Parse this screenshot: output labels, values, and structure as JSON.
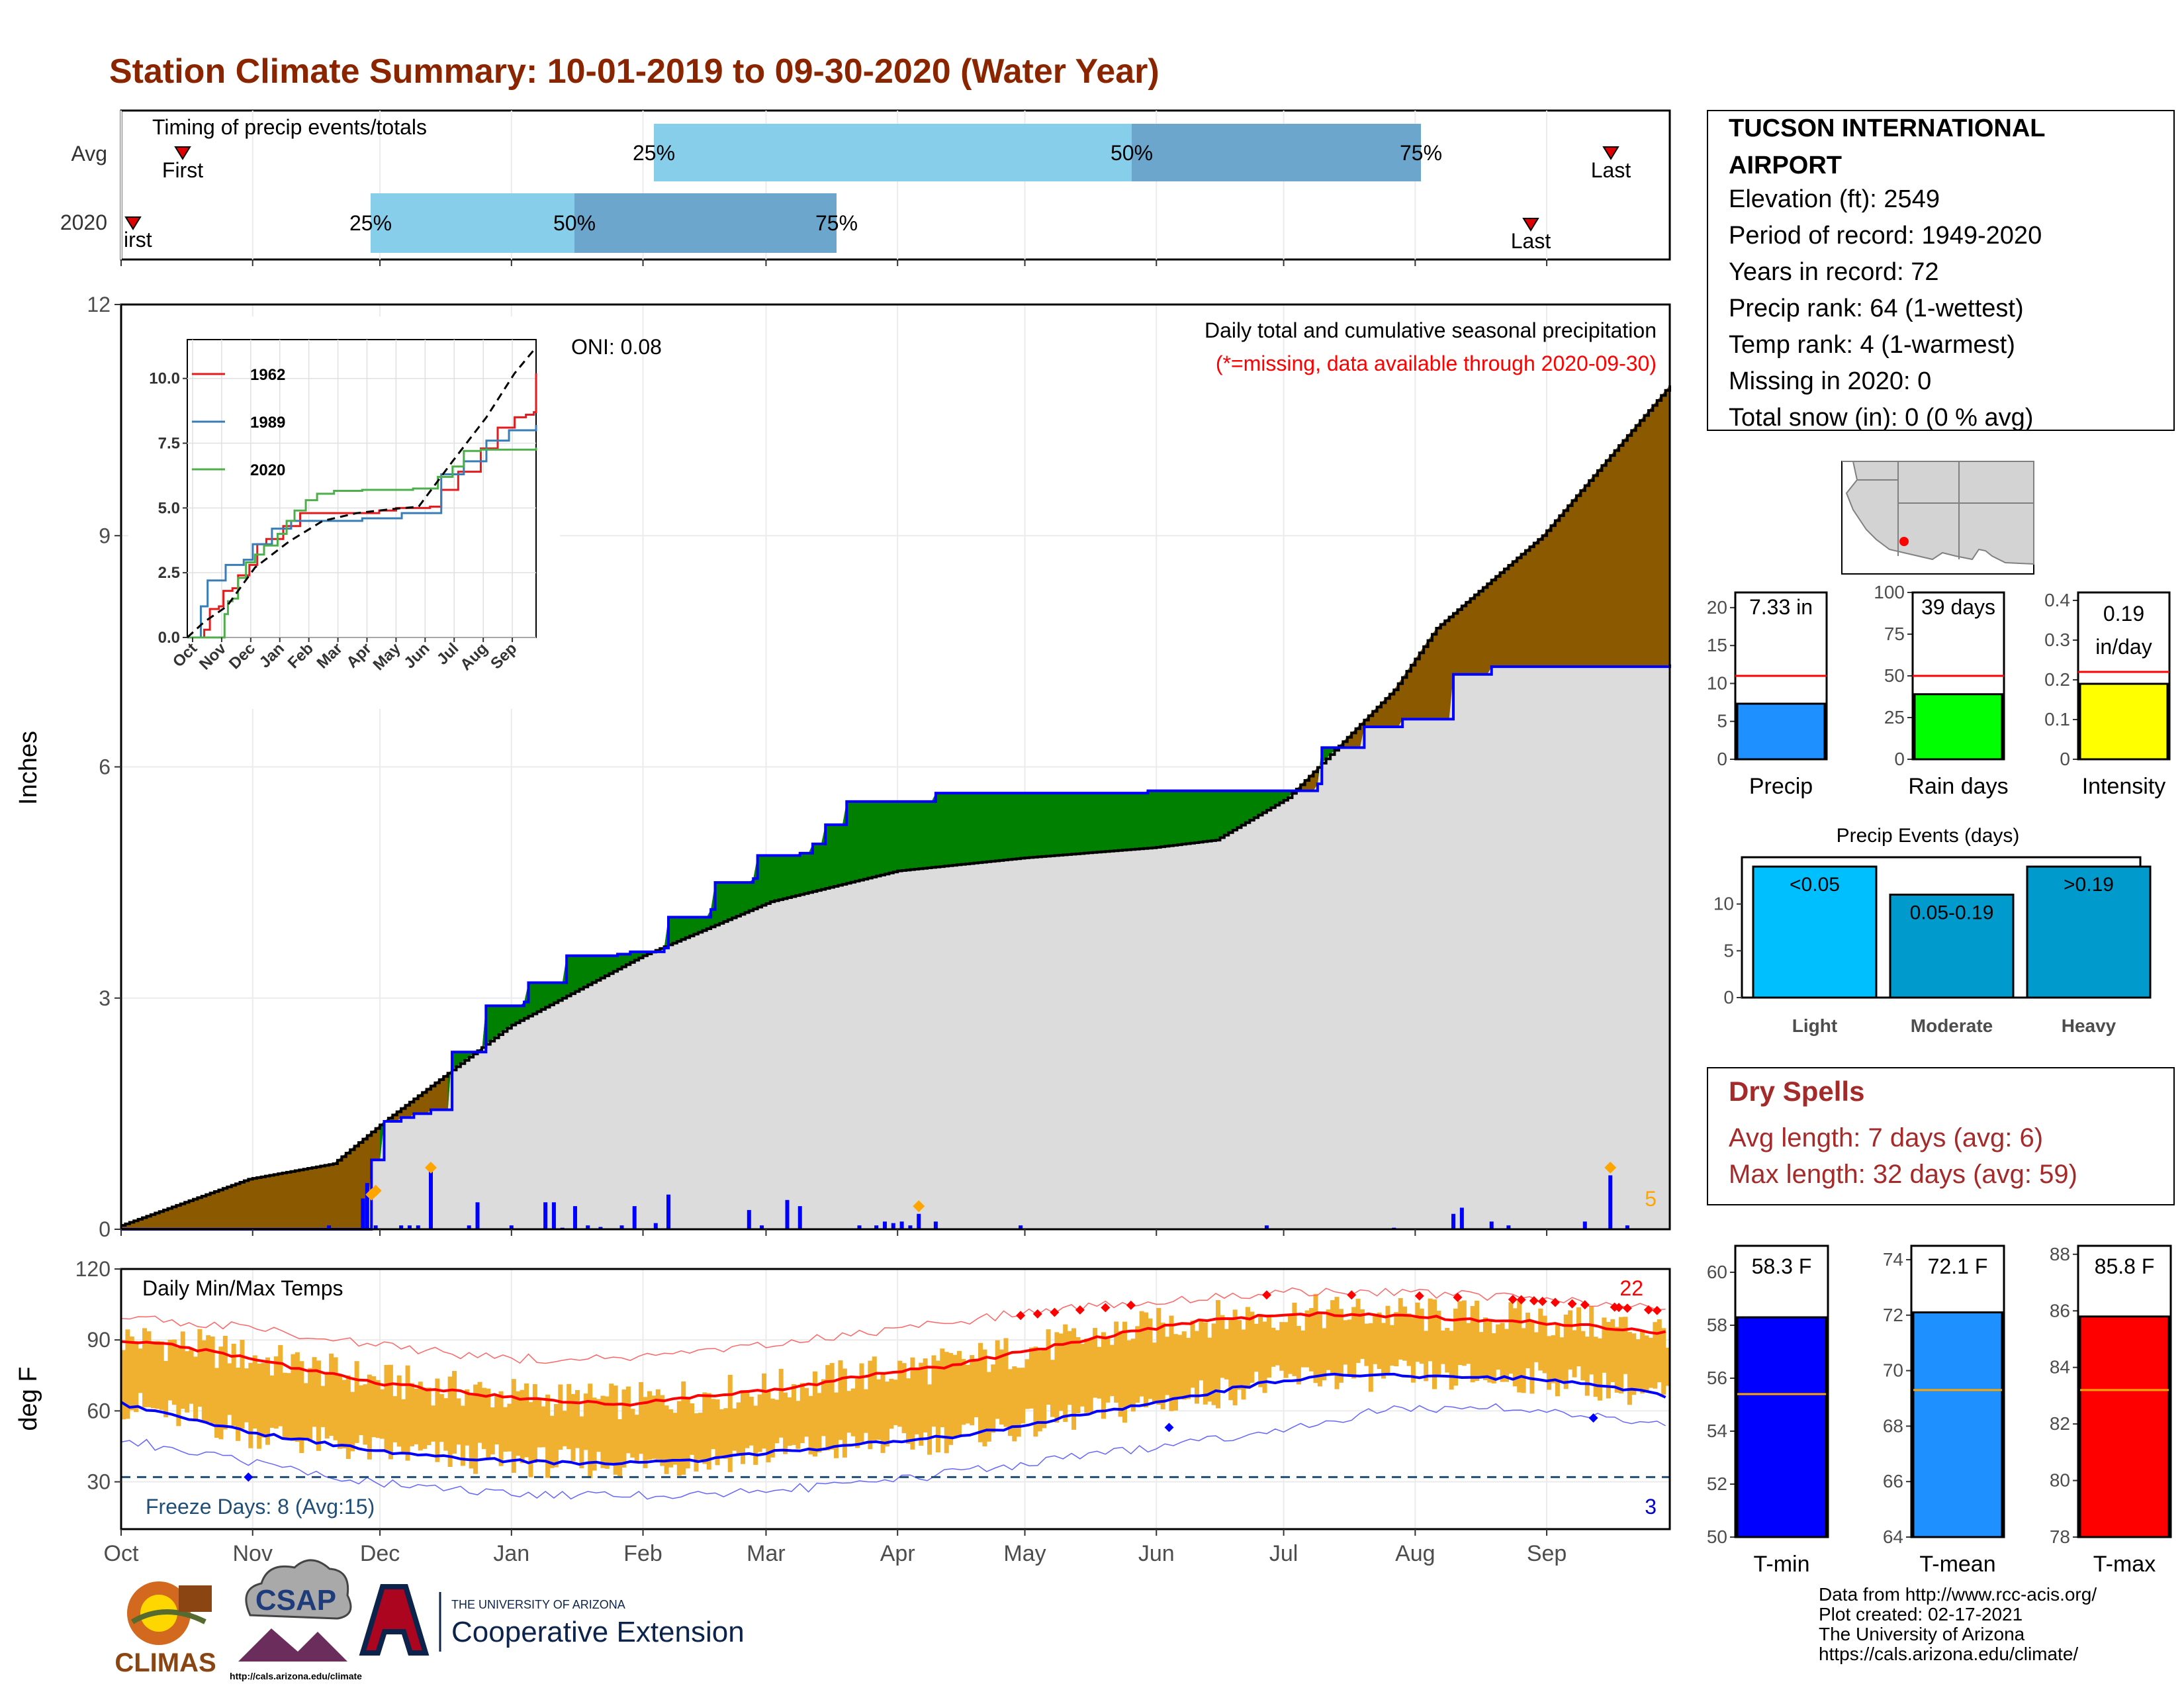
{
  "title": "Station Climate Summary: 10-01-2019 to 09-30-2020 (Water Year)",
  "months": [
    "Oct",
    "Nov",
    "Dec",
    "Jan",
    "Feb",
    "Mar",
    "Apr",
    "May",
    "Jun",
    "Jul",
    "Aug",
    "Sep"
  ],
  "colors": {
    "title": "#8B2500",
    "avg_precip_fill": "#DCDCDC",
    "surplus": "#008000",
    "deficit": "#8B5A00",
    "daily_bar": "#0000FF",
    "temp_bar": "#F0B030",
    "mean_max": "#FF0000",
    "mean_min": "#0000FF",
    "quartile_light": "#87CEEB",
    "quartile_dark": "#6CA6CD",
    "dry_spell_text": "#A52A2A"
  },
  "timing": {
    "title": "Timing of precip events/totals",
    "row_labels": [
      "Avg",
      "2020"
    ],
    "pct_labels": [
      "25%",
      "50%",
      "75%"
    ],
    "first_label": "First",
    "first_label_2020": "irst",
    "last_label": "Last"
  },
  "chart_data": [
    {
      "type": "area",
      "name": "precipitation",
      "title": "Daily total and cumulative seasonal precipitation",
      "subtitle": "(*=missing, data available through 2020-09-30)",
      "ylabel": "Inches",
      "ylim": [
        0,
        12
      ],
      "yticks": [
        0,
        3,
        6,
        9,
        12
      ],
      "x_categories": [
        "Oct",
        "Nov",
        "Dec",
        "Jan",
        "Feb",
        "Mar",
        "Apr",
        "May",
        "Jun",
        "Jul",
        "Aug",
        "Sep"
      ],
      "oni_label": "ONI: 0.08",
      "daily_max_marker": "5",
      "avg_cumulative": [
        [
          0,
          0.05
        ],
        [
          30,
          0.65
        ],
        [
          50,
          0.85
        ],
        [
          62,
          1.4
        ],
        [
          92,
          2.65
        ],
        [
          123,
          3.55
        ],
        [
          153,
          4.25
        ],
        [
          183,
          4.65
        ],
        [
          213,
          4.82
        ],
        [
          243,
          4.95
        ],
        [
          258,
          5.05
        ],
        [
          275,
          5.6
        ],
        [
          300,
          7.0
        ],
        [
          310,
          7.8
        ],
        [
          335,
          9.0
        ],
        [
          365,
          10.95
        ]
      ],
      "cumulative_2020": [
        [
          0,
          0
        ],
        [
          58,
          0
        ],
        [
          59,
          0.9
        ],
        [
          62,
          1.4
        ],
        [
          66,
          1.45
        ],
        [
          69,
          1.5
        ],
        [
          73,
          1.55
        ],
        [
          78,
          2.3
        ],
        [
          85,
          2.3
        ],
        [
          86,
          2.9
        ],
        [
          95,
          2.95
        ],
        [
          96,
          3.2
        ],
        [
          104,
          3.2
        ],
        [
          105,
          3.55
        ],
        [
          117,
          3.57
        ],
        [
          120,
          3.6
        ],
        [
          128,
          3.65
        ],
        [
          129,
          4.05
        ],
        [
          139,
          4.15
        ],
        [
          140,
          4.5
        ],
        [
          149,
          4.55
        ],
        [
          150,
          4.85
        ],
        [
          160,
          4.88
        ],
        [
          163,
          5.0
        ],
        [
          166,
          5.25
        ],
        [
          171,
          5.55
        ],
        [
          192,
          5.66
        ],
        [
          242,
          5.69
        ],
        [
          282,
          5.78
        ],
        [
          283,
          6.25
        ],
        [
          293,
          6.52
        ],
        [
          302,
          6.62
        ],
        [
          314,
          7.2
        ],
        [
          323,
          7.3
        ],
        [
          365,
          7.33
        ]
      ],
      "daily_2020": [
        [
          49,
          0.05
        ],
        [
          57,
          0.4
        ],
        [
          58,
          0.6
        ],
        [
          60,
          0.05
        ],
        [
          66,
          0.05
        ],
        [
          68,
          0.05
        ],
        [
          70,
          0.05
        ],
        [
          73,
          0.75
        ],
        [
          82,
          0.05
        ],
        [
          84,
          0.35
        ],
        [
          92,
          0.05
        ],
        [
          100,
          0.35
        ],
        [
          102,
          0.35
        ],
        [
          104,
          0.02
        ],
        [
          107,
          0.3
        ],
        [
          110,
          0.05
        ],
        [
          113,
          0.03
        ],
        [
          118,
          0.05
        ],
        [
          121,
          0.3
        ],
        [
          126,
          0.08
        ],
        [
          129,
          0.45
        ],
        [
          148,
          0.25
        ],
        [
          151,
          0.05
        ],
        [
          157,
          0.38
        ],
        [
          160,
          0.3
        ],
        [
          174,
          0.05
        ],
        [
          178,
          0.05
        ],
        [
          180,
          0.1
        ],
        [
          182,
          0.08
        ],
        [
          184,
          0.1
        ],
        [
          186,
          0.05
        ],
        [
          188,
          0.2
        ],
        [
          192,
          0.1
        ],
        [
          212,
          0.05
        ],
        [
          270,
          0.05
        ],
        [
          300,
          0.02
        ],
        [
          314,
          0.2
        ],
        [
          316,
          0.28
        ],
        [
          323,
          0.1
        ],
        [
          327,
          0.05
        ],
        [
          345,
          0.1
        ],
        [
          351,
          0.7
        ],
        [
          355,
          0.05
        ]
      ],
      "record_markers": [
        [
          59,
          0.45
        ],
        [
          60,
          0.5
        ],
        [
          73,
          0.8
        ],
        [
          188,
          0.3
        ],
        [
          351,
          0.8
        ]
      ]
    },
    {
      "type": "line",
      "name": "inset_cumulative",
      "yticks": [
        0.0,
        2.5,
        5.0,
        7.5,
        10.0
      ],
      "ylim": [
        0,
        11.5
      ],
      "series": [
        {
          "name": "1962",
          "color": "#E41A1C",
          "points": [
            [
              0,
              0
            ],
            [
              15,
              0.3
            ],
            [
              20,
              1.1
            ],
            [
              28,
              1.2
            ],
            [
              32,
              1.8
            ],
            [
              40,
              1.9
            ],
            [
              45,
              2.4
            ],
            [
              55,
              2.8
            ],
            [
              62,
              3.6
            ],
            [
              70,
              3.8
            ],
            [
              85,
              4.3
            ],
            [
              100,
              4.8
            ],
            [
              110,
              4.8
            ],
            [
              130,
              4.8
            ],
            [
              150,
              4.8
            ],
            [
              170,
              4.9
            ],
            [
              185,
              5.0
            ],
            [
              200,
              5.0
            ],
            [
              215,
              5.05
            ],
            [
              225,
              5.7
            ],
            [
              240,
              6.4
            ],
            [
              260,
              7.3
            ],
            [
              275,
              8.1
            ],
            [
              290,
              8.5
            ],
            [
              300,
              8.6
            ],
            [
              307,
              8.7
            ],
            [
              309,
              10.2
            ]
          ]
        },
        {
          "name": "1989",
          "color": "#377EB8",
          "points": [
            [
              0,
              0
            ],
            [
              12,
              1.2
            ],
            [
              18,
              2.2
            ],
            [
              30,
              2.2
            ],
            [
              34,
              2.8
            ],
            [
              50,
              3.0
            ],
            [
              58,
              3.6
            ],
            [
              75,
              4.2
            ],
            [
              92,
              4.5
            ],
            [
              110,
              4.5
            ],
            [
              130,
              4.5
            ],
            [
              155,
              4.6
            ],
            [
              190,
              4.8
            ],
            [
              210,
              4.8
            ],
            [
              225,
              6.3
            ],
            [
              245,
              6.8
            ],
            [
              265,
              7.6
            ],
            [
              285,
              8.0
            ],
            [
              309,
              8.2
            ]
          ]
        },
        {
          "name": "2020",
          "color": "#4DAF4A",
          "points": [
            [
              0,
              0
            ],
            [
              30,
              0
            ],
            [
              33,
              0.9
            ],
            [
              36,
              1.4
            ],
            [
              40,
              1.5
            ],
            [
              45,
              2.3
            ],
            [
              52,
              2.9
            ],
            [
              60,
              3.2
            ],
            [
              68,
              3.55
            ],
            [
              80,
              4.0
            ],
            [
              88,
              4.5
            ],
            [
              95,
              4.9
            ],
            [
              105,
              5.3
            ],
            [
              115,
              5.55
            ],
            [
              130,
              5.66
            ],
            [
              155,
              5.7
            ],
            [
              200,
              5.75
            ],
            [
              222,
              6.2
            ],
            [
              235,
              6.6
            ],
            [
              245,
              7.2
            ],
            [
              260,
              7.25
            ],
            [
              309,
              7.33
            ]
          ]
        }
      ],
      "average": [
        [
          0,
          0
        ],
        [
          15,
          0.6
        ],
        [
          35,
          1.2
        ],
        [
          60,
          2.7
        ],
        [
          90,
          3.7
        ],
        [
          120,
          4.5
        ],
        [
          150,
          4.8
        ],
        [
          180,
          4.95
        ],
        [
          205,
          5.05
        ],
        [
          235,
          6.8
        ],
        [
          265,
          8.5
        ],
        [
          290,
          10.2
        ],
        [
          309,
          11.2
        ]
      ],
      "x_labels": [
        "Oct",
        "Nov",
        "Dec",
        "Jan",
        "Feb",
        "Mar",
        "Apr",
        "May",
        "Jun",
        "Jul",
        "Aug",
        "Sep"
      ]
    },
    {
      "type": "bar",
      "name": "daily_temps",
      "title": "Daily Min/Max Temps",
      "ylabel": "deg F",
      "ylim": [
        10,
        120
      ],
      "yticks": [
        30,
        60,
        90,
        120
      ],
      "freeze_label": "Freeze Days: 8 (Avg:15)",
      "freeze_line": 32,
      "record_high_count": "22",
      "record_low_count": "3",
      "mean_max": [
        [
          0,
          90
        ],
        [
          15,
          87
        ],
        [
          30,
          82
        ],
        [
          45,
          77
        ],
        [
          60,
          72
        ],
        [
          75,
          69
        ],
        [
          90,
          66
        ],
        [
          105,
          64
        ],
        [
          120,
          63
        ],
        [
          135,
          66
        ],
        [
          150,
          68
        ],
        [
          165,
          72
        ],
        [
          180,
          76
        ],
        [
          195,
          79
        ],
        [
          210,
          84
        ],
        [
          225,
          89
        ],
        [
          240,
          94
        ],
        [
          255,
          98
        ],
        [
          270,
          100
        ],
        [
          285,
          101
        ],
        [
          300,
          100
        ],
        [
          315,
          99
        ],
        [
          330,
          98
        ],
        [
          345,
          96
        ],
        [
          365,
          93
        ]
      ],
      "mean_min": [
        [
          0,
          63
        ],
        [
          15,
          57
        ],
        [
          30,
          51
        ],
        [
          45,
          47
        ],
        [
          60,
          43
        ],
        [
          75,
          41
        ],
        [
          90,
          39
        ],
        [
          105,
          38
        ],
        [
          120,
          38
        ],
        [
          135,
          39
        ],
        [
          150,
          42
        ],
        [
          165,
          44
        ],
        [
          180,
          47
        ],
        [
          195,
          49
        ],
        [
          210,
          53
        ],
        [
          225,
          58
        ],
        [
          240,
          62
        ],
        [
          255,
          67
        ],
        [
          270,
          72
        ],
        [
          285,
          75
        ],
        [
          300,
          75
        ],
        [
          315,
          74
        ],
        [
          330,
          74
        ],
        [
          345,
          72
        ],
        [
          365,
          66
        ]
      ],
      "rec_max_line": [
        [
          0,
          100
        ],
        [
          30,
          95
        ],
        [
          60,
          88
        ],
        [
          90,
          82
        ],
        [
          120,
          82
        ],
        [
          150,
          87
        ],
        [
          180,
          94
        ],
        [
          210,
          101
        ],
        [
          240,
          106
        ],
        [
          270,
          110
        ],
        [
          300,
          110
        ],
        [
          330,
          108
        ],
        [
          365,
          103
        ]
      ],
      "rec_min_line": [
        [
          0,
          48
        ],
        [
          30,
          38
        ],
        [
          60,
          30
        ],
        [
          90,
          25
        ],
        [
          120,
          24
        ],
        [
          150,
          26
        ],
        [
          180,
          30
        ],
        [
          210,
          37
        ],
        [
          240,
          44
        ],
        [
          270,
          51
        ],
        [
          300,
          61
        ],
        [
          330,
          61
        ],
        [
          365,
          55
        ]
      ]
    },
    {
      "type": "bar",
      "name": "precip_totals",
      "categories": [
        "Precip",
        "Rain days",
        "Intensity"
      ],
      "values": [
        7.33,
        39,
        0.19
      ],
      "labels": [
        "7.33 in",
        "39 days",
        "0.19 in/day"
      ],
      "averages": [
        11.0,
        50,
        0.22
      ],
      "ylims": [
        [
          0,
          22
        ],
        [
          0,
          100
        ],
        [
          0,
          0.42
        ]
      ],
      "yticks": [
        [
          0,
          5,
          10,
          15,
          20
        ],
        [
          0,
          25,
          50,
          75,
          100
        ],
        [
          0.0,
          0.1,
          0.2,
          0.3,
          0.4
        ]
      ],
      "colors": [
        "#1E90FF",
        "#00FF00",
        "#FFFF00"
      ]
    },
    {
      "type": "bar",
      "name": "precip_events",
      "title": "Precip Events (days)",
      "categories": [
        "Light",
        "Moderate",
        "Heavy"
      ],
      "values": [
        14,
        11,
        14
      ],
      "labels": [
        "<0.05",
        "0.05-0.19",
        ">0.19"
      ],
      "ylim": [
        0,
        15
      ],
      "yticks": [
        0,
        5,
        10
      ],
      "colors": [
        "#00BFFF",
        "#009ACD",
        "#009ACD"
      ]
    },
    {
      "type": "bar",
      "name": "temp_summary",
      "categories": [
        "T-min",
        "T-mean",
        "T-max"
      ],
      "values": [
        58.3,
        72.1,
        85.8
      ],
      "labels": [
        "58.3 F",
        "72.1 F",
        "85.8 F"
      ],
      "averages": [
        55.4,
        69.3,
        83.2
      ],
      "ylims": [
        [
          50,
          61
        ],
        [
          64,
          74.5
        ],
        [
          78,
          88.3
        ]
      ],
      "yticks": [
        [
          50,
          52,
          54,
          56,
          58,
          60
        ],
        [
          64,
          66,
          68,
          70,
          72,
          74
        ],
        [
          78,
          80,
          82,
          84,
          86,
          88
        ]
      ],
      "colors": [
        "#0000FF",
        "#1E90FF",
        "#FF0000"
      ]
    }
  ],
  "station": {
    "name_line1": "TUCSON INTERNATIONAL",
    "name_line2": "AIRPORT",
    "lines": [
      "Elevation (ft): 2549",
      "Period of record: 1949-2020",
      "Years in record: 72",
      "Precip rank: 64 (1-wettest)",
      "Temp rank: 4 (1-warmest)",
      "Missing in 2020: 0",
      "Total snow (in): 0 (0 % avg)"
    ]
  },
  "dry_spells": {
    "title": "Dry Spells",
    "avg": "Avg length: 7 days (avg: 6)",
    "max": "Max length: 32 days (avg: 59)"
  },
  "footer": {
    "lines": [
      "Data from http://www.rcc-acis.org/",
      "Plot created: 02-17-2021",
      "The University of Arizona",
      "https://cals.arizona.edu/climate/"
    ],
    "climas": "CLIMAS",
    "csap": "CSAP",
    "csap_url": "http://cals.arizona.edu/climate",
    "ua_small": "THE UNIVERSITY OF ARIZONA",
    "ua_big": "Cooperative Extension"
  }
}
